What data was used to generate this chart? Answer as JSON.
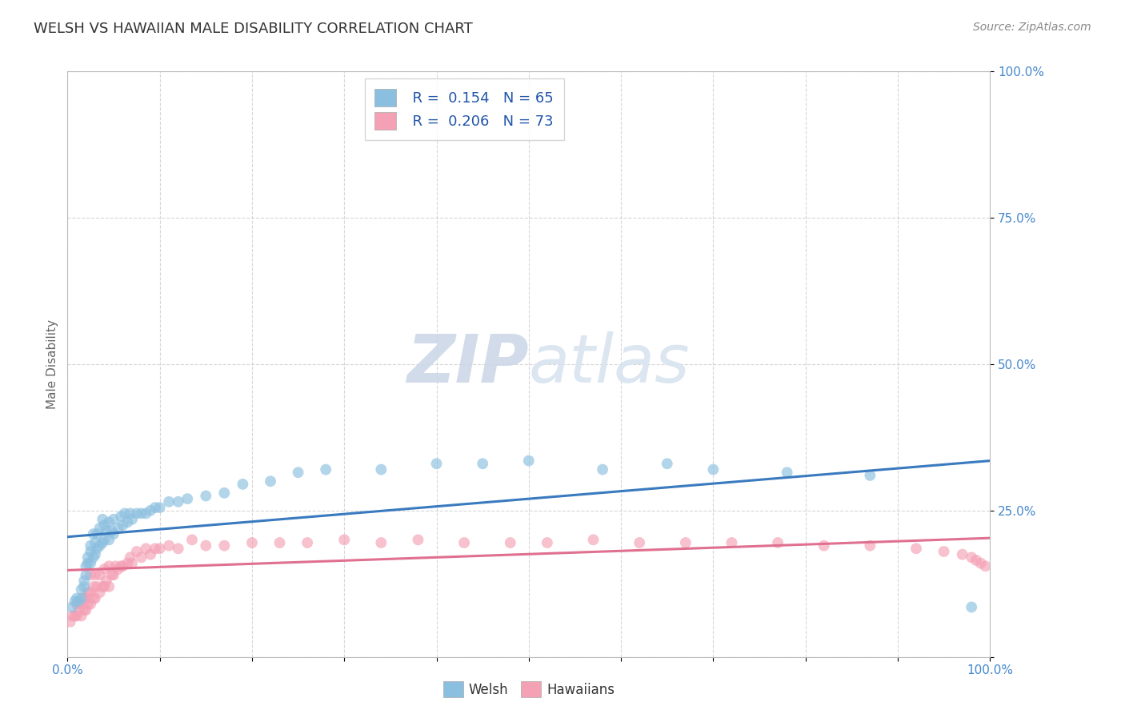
{
  "title": "WELSH VS HAWAIIAN MALE DISABILITY CORRELATION CHART",
  "source_text": "Source: ZipAtlas.com",
  "ylabel": "Male Disability",
  "xlabel": "",
  "xlim": [
    0.0,
    1.0
  ],
  "ylim": [
    0.0,
    1.0
  ],
  "xticks": [
    0.0,
    0.1,
    0.2,
    0.3,
    0.4,
    0.5,
    0.6,
    0.7,
    0.8,
    0.9,
    1.0
  ],
  "yticks": [
    0.0,
    0.25,
    0.5,
    0.75,
    1.0
  ],
  "xtick_labels": [
    "0.0%",
    "",
    "",
    "",
    "",
    "",
    "",
    "",
    "",
    "",
    "100.0%"
  ],
  "ytick_labels": [
    "",
    "25.0%",
    "50.0%",
    "75.0%",
    "100.0%"
  ],
  "welsh_R": 0.154,
  "welsh_N": 65,
  "hawaiian_R": 0.206,
  "hawaiian_N": 73,
  "welsh_color": "#8bbfdf",
  "hawaiian_color": "#f4a0b5",
  "welsh_line_color": "#3a7abf",
  "hawaiian_line_color": "#e07090",
  "background_color": "#ffffff",
  "grid_color": "#cccccc",
  "title_color": "#333333",
  "axis_label_color": "#666666",
  "tick_color": "#4488cc",
  "watermark_color": "#ccd8e8",
  "legend_text_color": "#2255aa",
  "welsh_line_intercept": 0.205,
  "welsh_line_slope": 0.13,
  "hawaiian_line_intercept": 0.148,
  "hawaiian_line_slope": 0.055,
  "welsh_scatter_x": [
    0.005,
    0.008,
    0.01,
    0.012,
    0.015,
    0.015,
    0.018,
    0.018,
    0.02,
    0.02,
    0.022,
    0.022,
    0.025,
    0.025,
    0.025,
    0.028,
    0.028,
    0.03,
    0.03,
    0.032,
    0.032,
    0.035,
    0.035,
    0.038,
    0.038,
    0.04,
    0.04,
    0.042,
    0.045,
    0.045,
    0.048,
    0.05,
    0.05,
    0.055,
    0.058,
    0.06,
    0.062,
    0.065,
    0.068,
    0.07,
    0.075,
    0.08,
    0.085,
    0.09,
    0.095,
    0.1,
    0.11,
    0.12,
    0.13,
    0.15,
    0.17,
    0.19,
    0.22,
    0.25,
    0.28,
    0.34,
    0.4,
    0.45,
    0.5,
    0.58,
    0.65,
    0.7,
    0.78,
    0.87,
    0.98
  ],
  "welsh_scatter_y": [
    0.085,
    0.095,
    0.1,
    0.095,
    0.1,
    0.115,
    0.12,
    0.13,
    0.14,
    0.155,
    0.16,
    0.17,
    0.16,
    0.18,
    0.19,
    0.17,
    0.21,
    0.175,
    0.195,
    0.185,
    0.21,
    0.19,
    0.22,
    0.195,
    0.235,
    0.2,
    0.225,
    0.215,
    0.2,
    0.23,
    0.215,
    0.21,
    0.235,
    0.22,
    0.24,
    0.225,
    0.245,
    0.23,
    0.245,
    0.235,
    0.245,
    0.245,
    0.245,
    0.25,
    0.255,
    0.255,
    0.265,
    0.265,
    0.27,
    0.275,
    0.28,
    0.295,
    0.3,
    0.315,
    0.32,
    0.32,
    0.33,
    0.33,
    0.335,
    0.32,
    0.33,
    0.32,
    0.315,
    0.31,
    0.085
  ],
  "hawaiian_scatter_x": [
    0.003,
    0.005,
    0.008,
    0.01,
    0.01,
    0.012,
    0.015,
    0.015,
    0.018,
    0.018,
    0.02,
    0.02,
    0.022,
    0.022,
    0.025,
    0.025,
    0.025,
    0.028,
    0.028,
    0.03,
    0.03,
    0.032,
    0.035,
    0.035,
    0.038,
    0.04,
    0.04,
    0.042,
    0.045,
    0.045,
    0.048,
    0.05,
    0.052,
    0.055,
    0.058,
    0.06,
    0.065,
    0.068,
    0.07,
    0.075,
    0.08,
    0.085,
    0.09,
    0.095,
    0.1,
    0.11,
    0.12,
    0.135,
    0.15,
    0.17,
    0.2,
    0.23,
    0.26,
    0.3,
    0.34,
    0.38,
    0.43,
    0.48,
    0.52,
    0.57,
    0.62,
    0.67,
    0.72,
    0.77,
    0.82,
    0.87,
    0.92,
    0.95,
    0.97,
    0.98,
    0.985,
    0.99,
    0.995
  ],
  "hawaiian_scatter_y": [
    0.06,
    0.07,
    0.07,
    0.07,
    0.09,
    0.08,
    0.07,
    0.09,
    0.08,
    0.1,
    0.08,
    0.1,
    0.09,
    0.11,
    0.09,
    0.11,
    0.14,
    0.1,
    0.12,
    0.1,
    0.14,
    0.12,
    0.11,
    0.14,
    0.12,
    0.12,
    0.15,
    0.13,
    0.12,
    0.155,
    0.14,
    0.14,
    0.155,
    0.15,
    0.155,
    0.155,
    0.16,
    0.17,
    0.16,
    0.18,
    0.17,
    0.185,
    0.175,
    0.185,
    0.185,
    0.19,
    0.185,
    0.2,
    0.19,
    0.19,
    0.195,
    0.195,
    0.195,
    0.2,
    0.195,
    0.2,
    0.195,
    0.195,
    0.195,
    0.2,
    0.195,
    0.195,
    0.195,
    0.195,
    0.19,
    0.19,
    0.185,
    0.18,
    0.175,
    0.17,
    0.165,
    0.16,
    0.155
  ]
}
